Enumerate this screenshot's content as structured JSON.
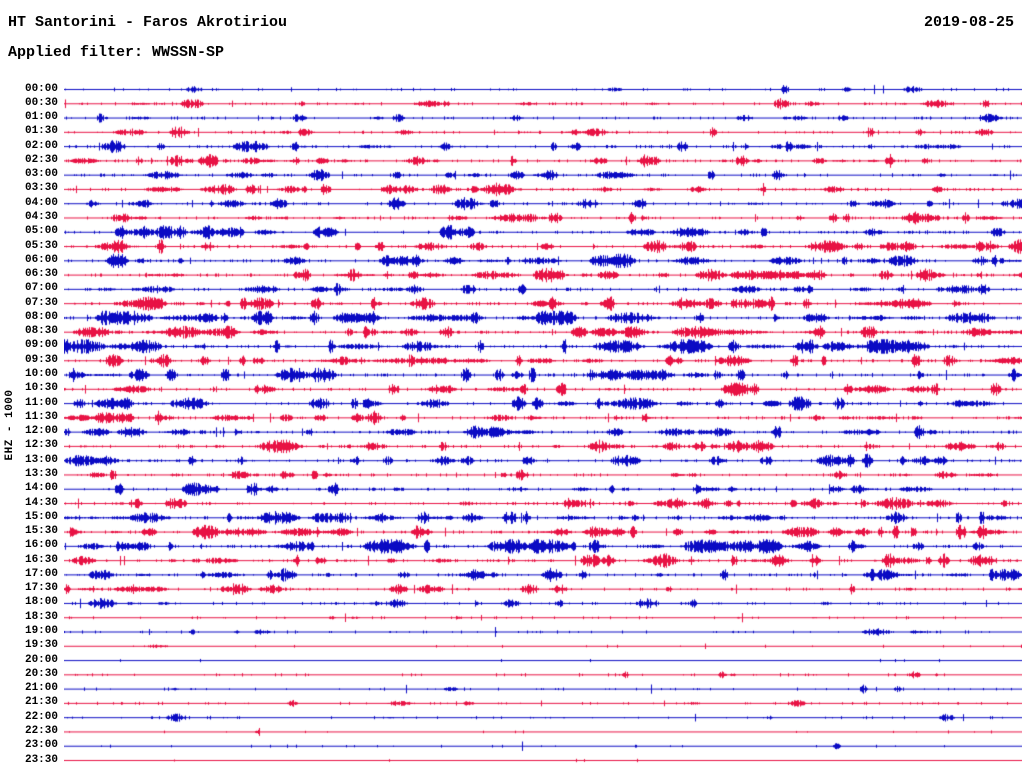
{
  "header": {
    "title": "HT Santorini - Faros Akrotiriou",
    "date": "2019-08-25",
    "filter": "Applied filter: WWSSN-SP"
  },
  "chart_data": {
    "type": "line",
    "subtype": "helicorder-seismogram",
    "title": "HT Santorini - Faros Akrotiriou",
    "date": "2019-08-25",
    "filter": "Applied filter: WWSSN-SP",
    "ylabel": "EHZ - 1000",
    "x_axis": "each row spans 30 minutes; 48 rows cover 00:00 to 23:30",
    "legend": "alternating half-hour traces: even rows blue, odd rows red",
    "colors": {
      "blue": "#0b0bc4",
      "red": "#e81244"
    },
    "rows": [
      {
        "time": "00:00",
        "color": "blue",
        "activity": 0.3
      },
      {
        "time": "00:30",
        "color": "red",
        "activity": 0.45
      },
      {
        "time": "01:00",
        "color": "blue",
        "activity": 0.45
      },
      {
        "time": "01:30",
        "color": "red",
        "activity": 0.5
      },
      {
        "time": "02:00",
        "color": "blue",
        "activity": 0.55
      },
      {
        "time": "02:30",
        "color": "red",
        "activity": 0.65
      },
      {
        "time": "03:00",
        "color": "blue",
        "activity": 0.5
      },
      {
        "time": "03:30",
        "color": "red",
        "activity": 0.6
      },
      {
        "time": "04:00",
        "color": "blue",
        "activity": 0.55
      },
      {
        "time": "04:30",
        "color": "red",
        "activity": 0.6
      },
      {
        "time": "05:00",
        "color": "blue",
        "activity": 0.65
      },
      {
        "time": "05:30",
        "color": "red",
        "activity": 0.7
      },
      {
        "time": "06:00",
        "color": "blue",
        "activity": 0.7
      },
      {
        "time": "06:30",
        "color": "red",
        "activity": 0.7
      },
      {
        "time": "07:00",
        "color": "blue",
        "activity": 0.6
      },
      {
        "time": "07:30",
        "color": "red",
        "activity": 0.72
      },
      {
        "time": "08:00",
        "color": "blue",
        "activity": 0.75
      },
      {
        "time": "08:30",
        "color": "red",
        "activity": 0.78
      },
      {
        "time": "09:00",
        "color": "blue",
        "activity": 0.78
      },
      {
        "time": "09:30",
        "color": "red",
        "activity": 0.68
      },
      {
        "time": "10:00",
        "color": "blue",
        "activity": 0.72
      },
      {
        "time": "10:30",
        "color": "red",
        "activity": 0.6
      },
      {
        "time": "11:00",
        "color": "blue",
        "activity": 0.68
      },
      {
        "time": "11:30",
        "color": "red",
        "activity": 0.62
      },
      {
        "time": "12:00",
        "color": "blue",
        "activity": 0.68
      },
      {
        "time": "12:30",
        "color": "red",
        "activity": 0.6
      },
      {
        "time": "13:00",
        "color": "blue",
        "activity": 0.6
      },
      {
        "time": "13:30",
        "color": "red",
        "activity": 0.5
      },
      {
        "time": "14:00",
        "color": "blue",
        "activity": 0.58
      },
      {
        "time": "14:30",
        "color": "red",
        "activity": 0.6
      },
      {
        "time": "15:00",
        "color": "blue",
        "activity": 0.72
      },
      {
        "time": "15:30",
        "color": "red",
        "activity": 0.8
      },
      {
        "time": "16:00",
        "color": "blue",
        "activity": 0.85
      },
      {
        "time": "16:30",
        "color": "red",
        "activity": 0.68
      },
      {
        "time": "17:00",
        "color": "blue",
        "activity": 0.62
      },
      {
        "time": "17:30",
        "color": "red",
        "activity": 0.5
      },
      {
        "time": "18:00",
        "color": "blue",
        "activity": 0.42
      },
      {
        "time": "18:30",
        "color": "red",
        "activity": 0.22
      },
      {
        "time": "19:00",
        "color": "blue",
        "activity": 0.28
      },
      {
        "time": "19:30",
        "color": "red",
        "activity": 0.08
      },
      {
        "time": "20:00",
        "color": "blue",
        "activity": 0.03
      },
      {
        "time": "20:30",
        "color": "red",
        "activity": 0.22
      },
      {
        "time": "21:00",
        "color": "blue",
        "activity": 0.22
      },
      {
        "time": "21:30",
        "color": "red",
        "activity": 0.28
      },
      {
        "time": "22:00",
        "color": "blue",
        "activity": 0.22
      },
      {
        "time": "22:30",
        "color": "red",
        "activity": 0.06
      },
      {
        "time": "23:00",
        "color": "blue",
        "activity": 0.1
      },
      {
        "time": "23:30",
        "color": "red",
        "activity": 0.02
      }
    ]
  }
}
